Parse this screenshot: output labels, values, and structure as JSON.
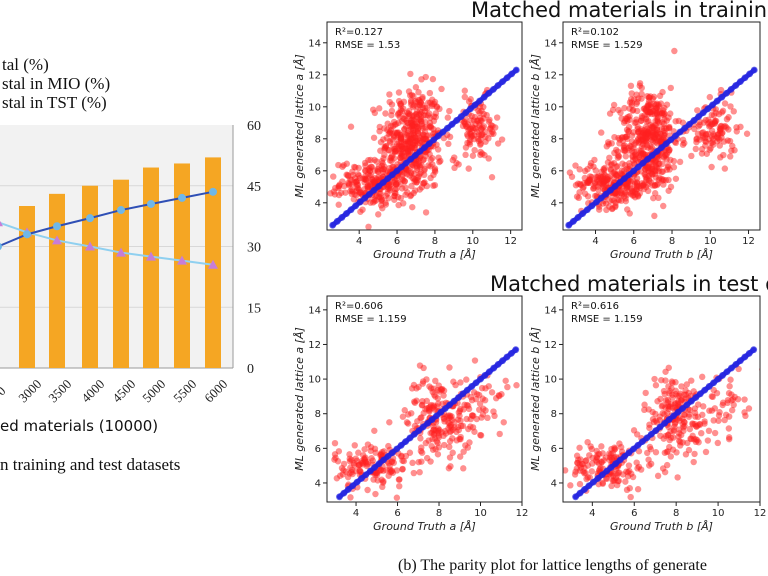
{
  "left_panel": {
    "legend_lines": [
      "tal (%)",
      "stal in MIO (%)",
      "stal in TST (%)"
    ],
    "xlabel": "ed materials (10000)",
    "caption": "n training and test datasets",
    "colors": {
      "bars": "#f5a623",
      "mio_line": "#2f4fb5",
      "mio_marker": "#6fb7e8",
      "tst_line": "#8fd0f0",
      "tst_marker": "#c77dd6",
      "plot_bg": "#f2f2f2"
    }
  },
  "right_panel": {
    "section_train_title": "Matched materials in trainin",
    "section_test_title": "Matched materials in test d",
    "caption": "(b) The parity plot for lattice lengths of generate",
    "colors": {
      "scatter": "#ff2020",
      "fit": "#2020e0"
    }
  },
  "chart_data": [
    {
      "type": "bar",
      "name": "combo",
      "categories": [
        "0",
        "3000",
        "3500",
        "4000",
        "4500",
        "5000",
        "5500",
        "6000"
      ],
      "tick_labels": [
        "0",
        "3000",
        "3500",
        "4000",
        "4500",
        "5000",
        "5500",
        "6000"
      ],
      "bar_values": [
        null,
        40,
        43,
        45,
        46.5,
        49.5,
        50.5,
        52
      ],
      "series": [
        {
          "name": "stal in MIO (%)",
          "values": [
            30,
            33,
            35,
            37,
            39,
            40.5,
            42,
            43.5
          ]
        },
        {
          "name": "stal in TST (%)",
          "values": [
            36,
            33.5,
            31.5,
            30,
            28.5,
            27.5,
            26.5,
            25.5
          ]
        }
      ],
      "y2_ticks": [
        "60",
        "45",
        "30",
        "15",
        "0"
      ],
      "ylim": [
        0,
        60
      ]
    },
    {
      "type": "scatter",
      "name": "train-a",
      "annotation": [
        "R²=0.127",
        "RMSE = 1.53"
      ],
      "xlabel": "Ground Truth a [Å]",
      "ylabel": "ML generated lattice a [Å]",
      "xticks": [
        "4",
        "6",
        "8",
        "10",
        "12"
      ],
      "yticks": [
        "4",
        "6",
        "8",
        "10",
        "12",
        "14"
      ],
      "xlim": [
        2.3,
        12.6
      ],
      "ylim": [
        2.3,
        15.3
      ],
      "clusters": [
        {
          "cx": 6.8,
          "cy": 8.0,
          "sx": 0.8,
          "sy": 1.6,
          "n": 420
        },
        {
          "cx": 5.0,
          "cy": 5.2,
          "sx": 1.0,
          "sy": 0.7,
          "n": 260
        },
        {
          "cx": 10.2,
          "cy": 8.6,
          "sx": 0.6,
          "sy": 1.0,
          "n": 110
        }
      ]
    },
    {
      "type": "scatter",
      "name": "train-b",
      "annotation": [
        "R²=0.102",
        "RMSE = 1.529"
      ],
      "xlabel": "Ground Truth b [Å]",
      "ylabel": "ML generated lattice b [Å]",
      "xticks": [
        "4",
        "6",
        "8",
        "10",
        "12"
      ],
      "yticks": [
        "4",
        "6",
        "8",
        "10",
        "12",
        "14"
      ],
      "xlim": [
        2.3,
        12.6
      ],
      "ylim": [
        2.3,
        15.3
      ],
      "clusters": [
        {
          "cx": 6.8,
          "cy": 8.0,
          "sx": 0.8,
          "sy": 1.6,
          "n": 420
        },
        {
          "cx": 5.0,
          "cy": 5.2,
          "sx": 1.0,
          "sy": 0.7,
          "n": 260
        },
        {
          "cx": 10.2,
          "cy": 8.4,
          "sx": 0.6,
          "sy": 1.0,
          "n": 110
        }
      ]
    },
    {
      "type": "scatter",
      "name": "test-a",
      "annotation": [
        "R²=0.606",
        "RMSE = 1.159"
      ],
      "xlabel": "Ground Truth a [Å]",
      "ylabel": "ML generated lattice a [Å]",
      "xticks": [
        "4",
        "6",
        "8",
        "10",
        "12"
      ],
      "yticks": [
        "4",
        "6",
        "8",
        "10",
        "12",
        "14"
      ],
      "xlim": [
        2.6,
        12.0
      ],
      "ylim": [
        2.9,
        14.8
      ],
      "clusters": [
        {
          "cx": 8.0,
          "cy": 7.8,
          "sx": 0.8,
          "sy": 1.2,
          "n": 200
        },
        {
          "cx": 4.8,
          "cy": 5.0,
          "sx": 0.9,
          "sy": 0.7,
          "n": 140
        },
        {
          "cx": 10.3,
          "cy": 8.6,
          "sx": 0.5,
          "sy": 0.9,
          "n": 40
        }
      ]
    },
    {
      "type": "scatter",
      "name": "test-b",
      "annotation": [
        "R²=0.616",
        "RMSE = 1.159"
      ],
      "xlabel": "Ground Truth b [Å]",
      "ylabel": "ML generated lattice b [Å]",
      "xticks": [
        "4",
        "6",
        "8",
        "10",
        "12"
      ],
      "yticks": [
        "4",
        "6",
        "8",
        "10",
        "12",
        "14"
      ],
      "xlim": [
        2.6,
        12.0
      ],
      "ylim": [
        2.9,
        14.8
      ],
      "clusters": [
        {
          "cx": 8.0,
          "cy": 7.8,
          "sx": 0.8,
          "sy": 1.2,
          "n": 200
        },
        {
          "cx": 4.8,
          "cy": 5.0,
          "sx": 0.9,
          "sy": 0.7,
          "n": 140
        },
        {
          "cx": 10.3,
          "cy": 8.6,
          "sx": 0.5,
          "sy": 0.9,
          "n": 40
        }
      ]
    }
  ]
}
